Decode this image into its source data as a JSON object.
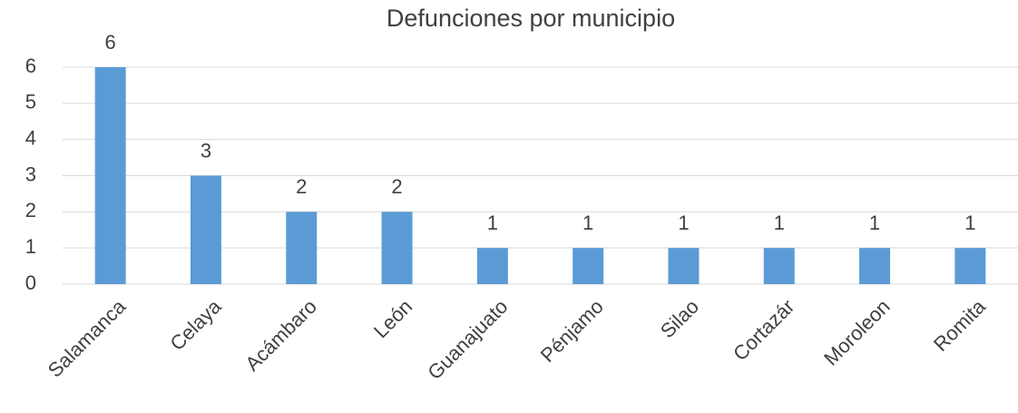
{
  "chart_data": {
    "type": "bar",
    "title": "Defunciones por municipio",
    "categories": [
      "Salamanca",
      "Celaya",
      "Acámbaro",
      "León",
      "Guanajuato",
      "Pénjamo",
      "Silao",
      "Cortazár",
      "Moroleon",
      "Romita"
    ],
    "values": [
      6,
      3,
      2,
      2,
      1,
      1,
      1,
      1,
      1,
      1
    ],
    "color": "#5b9bd5",
    "ylim": [
      0,
      6
    ],
    "yticks": [
      0,
      1,
      2,
      3,
      4,
      5,
      6
    ],
    "grid": true,
    "data_labels": true
  }
}
